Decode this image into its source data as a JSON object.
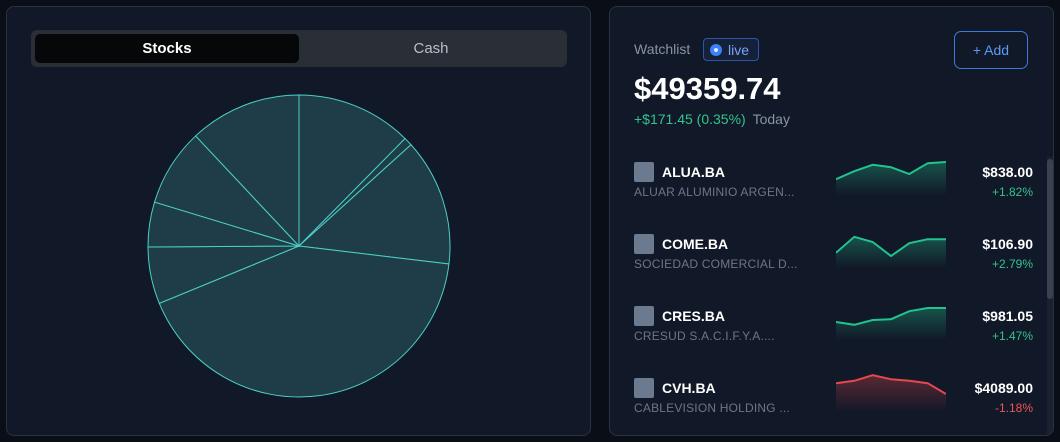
{
  "tabs": [
    {
      "label": "Stocks",
      "active": true
    },
    {
      "label": "Cash",
      "active": false
    }
  ],
  "chart_data": {
    "type": "pie",
    "title": "",
    "colors": {
      "fill": "#1f3d48",
      "stroke": "#4ccfc6"
    },
    "values": [
      12.4,
      0.9,
      13.6,
      41.9,
      6.1,
      4.8,
      8.3,
      12.0
    ]
  },
  "watchlist": {
    "title": "Watchlist",
    "live_label": "live",
    "add_label": "+ Add",
    "total": "$49359.74",
    "change": "+$171.45 (0.35%)",
    "change_label": "Today",
    "items": [
      {
        "symbol": "ALUA.BA",
        "name": "ALUAR ALUMINIO ARGEN...",
        "price": "$838.00",
        "change": "+1.82%",
        "trend": "up",
        "spark": [
          0.42,
          0.62,
          0.78,
          0.72,
          0.55,
          0.82,
          0.85
        ]
      },
      {
        "symbol": "COME.BA",
        "name": "SOCIEDAD COMERCIAL D...",
        "price": "$106.90",
        "change": "+2.79%",
        "trend": "up",
        "spark": [
          0.38,
          0.78,
          0.65,
          0.3,
          0.62,
          0.72,
          0.72
        ]
      },
      {
        "symbol": "CRES.BA",
        "name": "CRESUD S.A.C.I.F.Y.A....",
        "price": "$981.05",
        "change": "+1.47%",
        "trend": "up",
        "spark": [
          0.45,
          0.38,
          0.5,
          0.52,
          0.72,
          0.8,
          0.8
        ]
      },
      {
        "symbol": "CVH.BA",
        "name": "CABLEVISION HOLDING ...",
        "price": "$4089.00",
        "change": "-1.18%",
        "trend": "down",
        "spark": [
          0.72,
          0.78,
          0.92,
          0.82,
          0.78,
          0.72,
          0.45
        ]
      }
    ]
  }
}
